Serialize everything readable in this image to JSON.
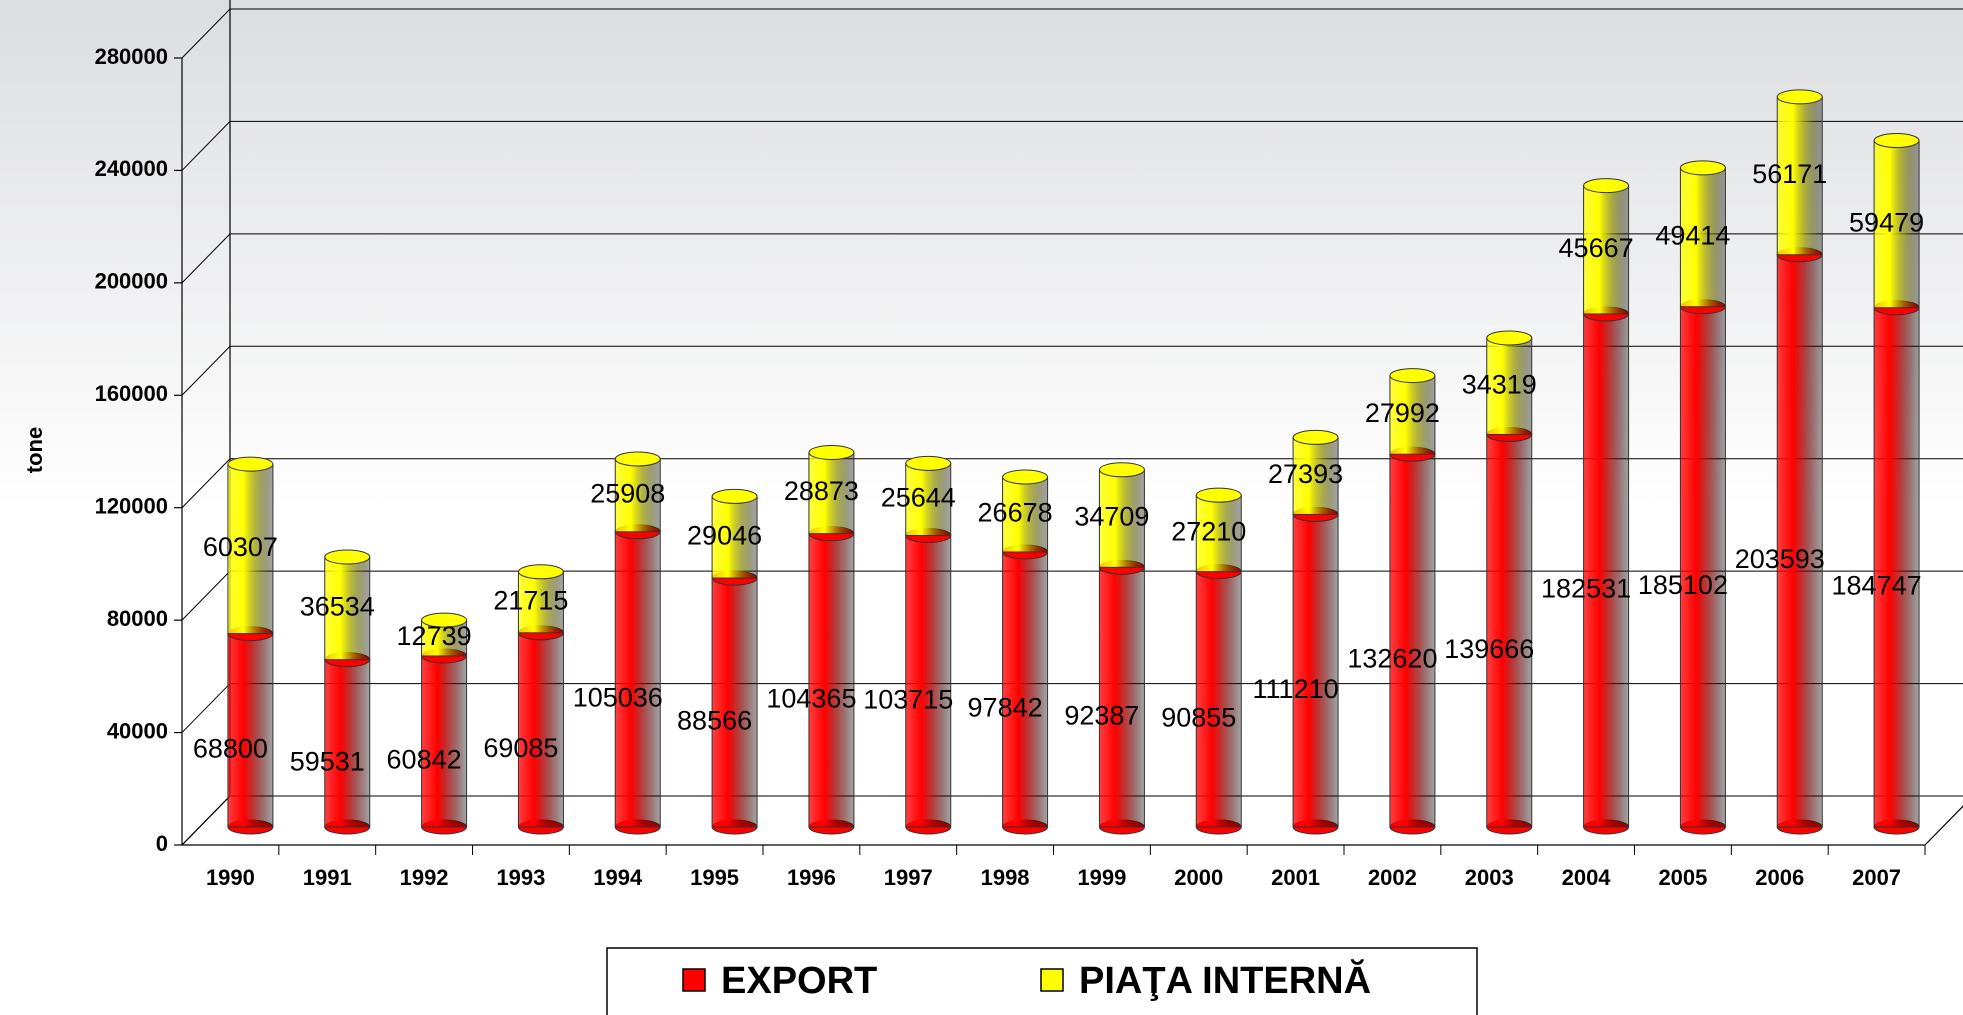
{
  "chart_data": {
    "type": "bar",
    "stacked": true,
    "y_label": "tone",
    "categories": [
      "1990",
      "1991",
      "1992",
      "1993",
      "1994",
      "1995",
      "1996",
      "1997",
      "1998",
      "1999",
      "2000",
      "2001",
      "2002",
      "2003",
      "2004",
      "2005",
      "2006",
      "2007"
    ],
    "series": [
      {
        "name": "EXPORT",
        "color": "#ff0000",
        "values": [
          68800,
          59531,
          60842,
          69085,
          105036,
          88566,
          104365,
          103715,
          97842,
          92387,
          90855,
          111210,
          132620,
          139666,
          182531,
          185102,
          203593,
          184747
        ]
      },
      {
        "name": "PIAŢA INTERNĂ",
        "color": "#ffff00",
        "values": [
          60307,
          36534,
          12739,
          21715,
          25908,
          29046,
          28873,
          25644,
          26678,
          34709,
          27210,
          27393,
          27992,
          34319,
          45667,
          49414,
          56171,
          59479
        ]
      }
    ],
    "ylim": [
      0,
      280000
    ],
    "yticks": [
      0,
      40000,
      80000,
      120000,
      160000,
      200000,
      240000,
      280000
    ],
    "grid": true
  }
}
